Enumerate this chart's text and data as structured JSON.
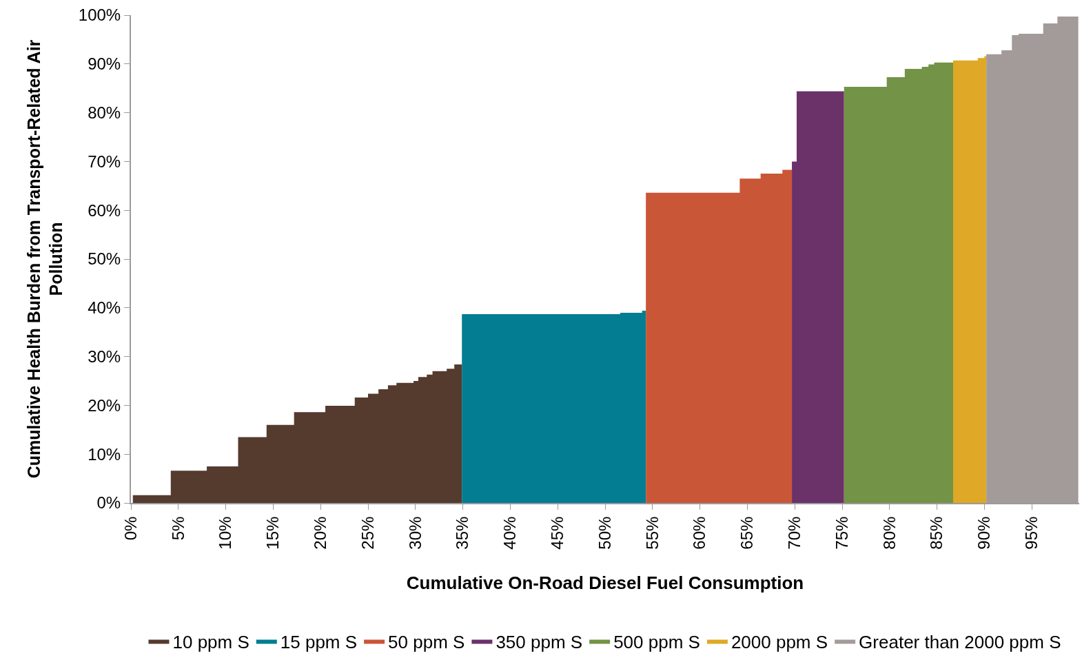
{
  "chart_data": {
    "type": "step",
    "xlabel": "Cumulative On-Road Diesel Fuel Consumption",
    "ylabel": "Cumulative Health Burden from Transport-Related Air\nPollution",
    "xlim": [
      0,
      100
    ],
    "ylim": [
      0,
      100
    ],
    "xticks": [
      {
        "value": 0,
        "label": "0%"
      },
      {
        "value": 5,
        "label": "5%"
      },
      {
        "value": 10,
        "label": "10%"
      },
      {
        "value": 15,
        "label": "15%"
      },
      {
        "value": 20,
        "label": "20%"
      },
      {
        "value": 25,
        "label": "25%"
      },
      {
        "value": 30,
        "label": "30%"
      },
      {
        "value": 35,
        "label": "35%"
      },
      {
        "value": 40,
        "label": "40%"
      },
      {
        "value": 45,
        "label": "45%"
      },
      {
        "value": 50,
        "label": "50%"
      },
      {
        "value": 55,
        "label": "55%"
      },
      {
        "value": 60,
        "label": "60%"
      },
      {
        "value": 65,
        "label": "65%"
      },
      {
        "value": 70,
        "label": "70%"
      },
      {
        "value": 75,
        "label": "75%"
      },
      {
        "value": 80,
        "label": "80%"
      },
      {
        "value": 85,
        "label": "85%"
      },
      {
        "value": 90,
        "label": "90%"
      },
      {
        "value": 95,
        "label": "95%"
      }
    ],
    "yticks": [
      {
        "value": 0,
        "label": "0%"
      },
      {
        "value": 10,
        "label": "10%"
      },
      {
        "value": 20,
        "label": "20%"
      },
      {
        "value": 30,
        "label": "30%"
      },
      {
        "value": 40,
        "label": "40%"
      },
      {
        "value": 50,
        "label": "50%"
      },
      {
        "value": 60,
        "label": "60%"
      },
      {
        "value": 70,
        "label": "70%"
      },
      {
        "value": 80,
        "label": "80%"
      },
      {
        "value": 90,
        "label": "90%"
      },
      {
        "value": 100,
        "label": "100%"
      }
    ],
    "grid": false,
    "legend": "bottom",
    "series": [
      {
        "name": "10 ppm S",
        "type": "area",
        "color": "#553a2e",
        "x": [
          0.2,
          4.2,
          8.0,
          11.3,
          14.3,
          17.2,
          20.5,
          23.6,
          25.0,
          26.1,
          27.1,
          28.0,
          29.8,
          30.3,
          31.2,
          31.8,
          33.3,
          34.1,
          34.9
        ],
        "values": [
          1.6,
          6.6,
          7.5,
          13.5,
          16.0,
          18.6,
          19.9,
          21.6,
          22.4,
          23.3,
          24.1,
          24.6,
          25.0,
          25.8,
          26.3,
          27.0,
          27.5,
          28.4,
          28.4
        ]
      },
      {
        "name": "15 ppm S",
        "type": "area",
        "color": "#027d91",
        "x": [
          34.9,
          51.6,
          53.9,
          54.3
        ],
        "values": [
          38.7,
          39.0,
          39.4,
          39.4
        ]
      },
      {
        "name": "50 ppm S",
        "type": "area",
        "color": "#c95637",
        "x": [
          54.3,
          64.2,
          66.4,
          68.7,
          69.7
        ],
        "values": [
          63.6,
          66.5,
          67.5,
          68.3,
          68.3
        ]
      },
      {
        "name": "350 ppm S",
        "type": "area",
        "color": "#6b3169",
        "x": [
          69.7,
          70.2,
          75.2
        ],
        "values": [
          70.0,
          84.4,
          84.4
        ]
      },
      {
        "name": "500 ppm S",
        "type": "area",
        "color": "#739346",
        "x": [
          75.2,
          79.7,
          81.6,
          83.4,
          84.1,
          84.7,
          86.7
        ],
        "values": [
          85.3,
          87.3,
          89.0,
          89.4,
          89.9,
          90.3,
          90.3
        ]
      },
      {
        "name": "2000 ppm S",
        "type": "area",
        "color": "#dfa826",
        "x": [
          86.7,
          89.3,
          90.0,
          90.2
        ],
        "values": [
          90.7,
          91.2,
          91.6,
          91.6
        ]
      },
      {
        "name": "Greater than 2000 ppm S",
        "type": "area",
        "color": "#a39b99",
        "x": [
          90.2,
          91.8,
          92.9,
          93.6,
          96.2,
          97.7,
          99.9
        ],
        "values": [
          92.0,
          92.8,
          95.9,
          96.2,
          98.3,
          99.7,
          99.7
        ]
      }
    ]
  }
}
